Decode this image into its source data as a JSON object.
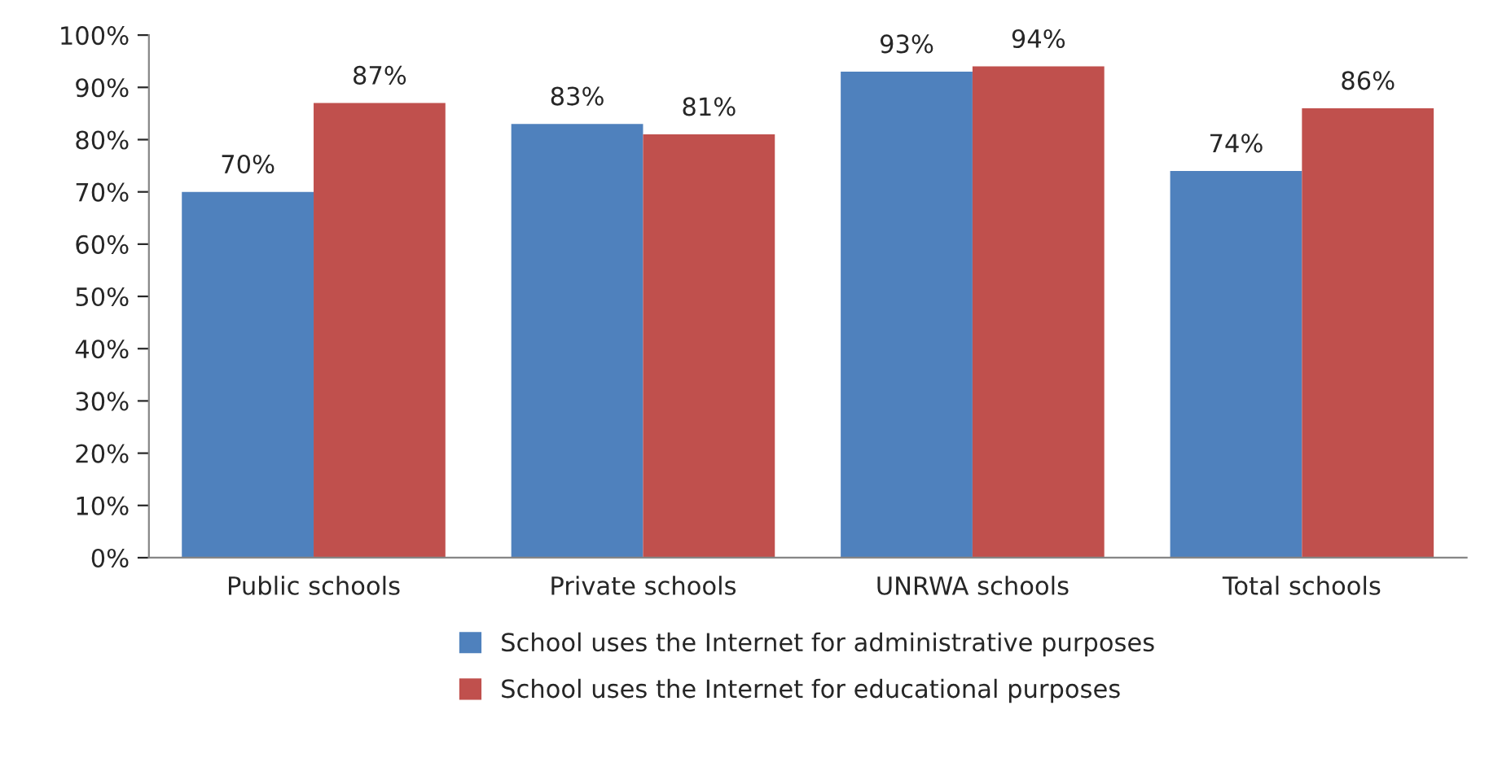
{
  "chart_data": {
    "type": "bar",
    "categories": [
      "Public schools",
      "Private schools",
      "UNRWA schools",
      "Total schools"
    ],
    "series": [
      {
        "name": "School uses the Internet for administrative purposes",
        "color": "#4f81bd",
        "values": [
          70,
          83,
          93,
          74
        ],
        "value_labels": [
          "70%",
          "83%",
          "93%",
          "74%"
        ]
      },
      {
        "name": "School uses the Internet for educational purposes",
        "color": "#c0504d",
        "values": [
          87,
          81,
          94,
          86
        ],
        "value_labels": [
          "87%",
          "81%",
          "94%",
          "86%"
        ]
      }
    ],
    "ylim": [
      0,
      100
    ],
    "yticks": [
      {
        "value": 0,
        "label": "0%"
      },
      {
        "value": 10,
        "label": "10%"
      },
      {
        "value": 20,
        "label": "20%"
      },
      {
        "value": 30,
        "label": "30%"
      },
      {
        "value": 40,
        "label": "40%"
      },
      {
        "value": 50,
        "label": "50%"
      },
      {
        "value": 60,
        "label": "60%"
      },
      {
        "value": 70,
        "label": "70%"
      },
      {
        "value": 80,
        "label": "80%"
      },
      {
        "value": 90,
        "label": "90%"
      },
      {
        "value": 100,
        "label": "100%"
      }
    ],
    "grid": false,
    "legend": "bottom"
  }
}
